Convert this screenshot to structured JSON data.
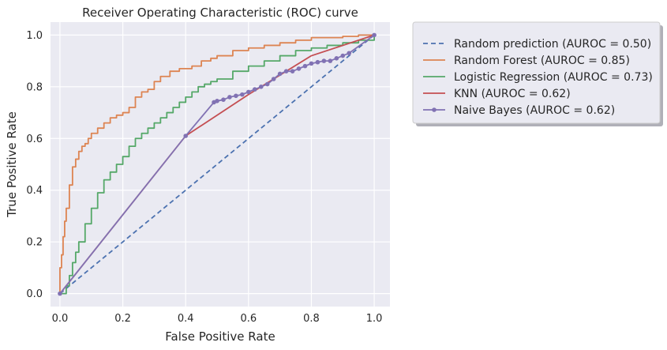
{
  "chart_data": {
    "type": "line",
    "title": "Receiver Operating Characteristic (ROC) curve",
    "xlabel": "False Positive Rate",
    "ylabel": "True Positive Rate",
    "xlim": [
      -0.03,
      1.05
    ],
    "ylim": [
      -0.05,
      1.05
    ],
    "xticks": [
      0.0,
      0.2,
      0.4,
      0.6,
      0.8,
      1.0
    ],
    "yticks": [
      0.0,
      0.2,
      0.4,
      0.6,
      0.8,
      1.0
    ],
    "xtick_labels": [
      "0.0",
      "0.2",
      "0.4",
      "0.6",
      "0.8",
      "1.0"
    ],
    "ytick_labels": [
      "0.0",
      "0.2",
      "0.4",
      "0.6",
      "0.8",
      "1.0"
    ],
    "grid": true,
    "legend_placement": "outside-top-right",
    "series": [
      {
        "name": "Random prediction (AUROC = 0.50)",
        "color": "#4c72b0",
        "style": "dashed",
        "x": [
          0,
          1
        ],
        "y": [
          0,
          1
        ]
      },
      {
        "name": "Random Forest (AUROC = 0.85)",
        "color": "#dd8452",
        "style": "step",
        "x": [
          0.0,
          0.0,
          0.005,
          0.01,
          0.015,
          0.02,
          0.03,
          0.04,
          0.05,
          0.06,
          0.07,
          0.08,
          0.09,
          0.1,
          0.12,
          0.14,
          0.16,
          0.18,
          0.2,
          0.22,
          0.24,
          0.26,
          0.28,
          0.3,
          0.32,
          0.35,
          0.38,
          0.4,
          0.42,
          0.45,
          0.48,
          0.5,
          0.55,
          0.6,
          0.65,
          0.7,
          0.75,
          0.8,
          0.85,
          0.9,
          0.95,
          1.0
        ],
        "y": [
          0.0,
          0.1,
          0.15,
          0.22,
          0.28,
          0.33,
          0.42,
          0.49,
          0.52,
          0.55,
          0.57,
          0.58,
          0.6,
          0.62,
          0.64,
          0.66,
          0.68,
          0.69,
          0.7,
          0.72,
          0.76,
          0.78,
          0.79,
          0.82,
          0.84,
          0.86,
          0.87,
          0.87,
          0.88,
          0.9,
          0.91,
          0.92,
          0.94,
          0.95,
          0.96,
          0.97,
          0.98,
          0.99,
          0.99,
          0.995,
          1.0,
          1.0
        ]
      },
      {
        "name": "Logistic Regression (AUROC = 0.73)",
        "color": "#55a868",
        "style": "step",
        "x": [
          0.0,
          0.02,
          0.03,
          0.04,
          0.05,
          0.06,
          0.08,
          0.1,
          0.12,
          0.14,
          0.16,
          0.18,
          0.2,
          0.22,
          0.24,
          0.26,
          0.28,
          0.3,
          0.32,
          0.34,
          0.36,
          0.38,
          0.4,
          0.42,
          0.44,
          0.46,
          0.48,
          0.5,
          0.55,
          0.6,
          0.65,
          0.7,
          0.75,
          0.8,
          0.85,
          0.9,
          0.95,
          1.0
        ],
        "y": [
          0.0,
          0.03,
          0.07,
          0.12,
          0.16,
          0.2,
          0.27,
          0.33,
          0.39,
          0.44,
          0.47,
          0.5,
          0.53,
          0.57,
          0.6,
          0.62,
          0.64,
          0.66,
          0.68,
          0.7,
          0.72,
          0.74,
          0.76,
          0.78,
          0.8,
          0.81,
          0.82,
          0.83,
          0.86,
          0.88,
          0.9,
          0.92,
          0.94,
          0.95,
          0.96,
          0.97,
          0.98,
          1.0
        ]
      },
      {
        "name": "KNN (AUROC = 0.62)",
        "color": "#c44e52",
        "style": "solid",
        "x": [
          0.0,
          0.4,
          0.6,
          0.8,
          1.0
        ],
        "y": [
          0.0,
          0.61,
          0.77,
          0.92,
          1.0
        ]
      },
      {
        "name": "Naive Bayes (AUROC = 0.62)",
        "color": "#8172b3",
        "style": "solid-markers",
        "x": [
          0.0,
          0.4,
          0.49,
          0.5,
          0.52,
          0.54,
          0.56,
          0.58,
          0.6,
          0.62,
          0.64,
          0.66,
          0.68,
          0.7,
          0.72,
          0.74,
          0.76,
          0.78,
          0.8,
          0.82,
          0.84,
          0.86,
          0.88,
          0.9,
          0.92,
          1.0
        ],
        "y": [
          0.0,
          0.61,
          0.74,
          0.745,
          0.75,
          0.76,
          0.765,
          0.77,
          0.78,
          0.79,
          0.8,
          0.81,
          0.83,
          0.85,
          0.86,
          0.86,
          0.87,
          0.88,
          0.89,
          0.895,
          0.9,
          0.9,
          0.91,
          0.92,
          0.93,
          1.0
        ]
      }
    ]
  }
}
